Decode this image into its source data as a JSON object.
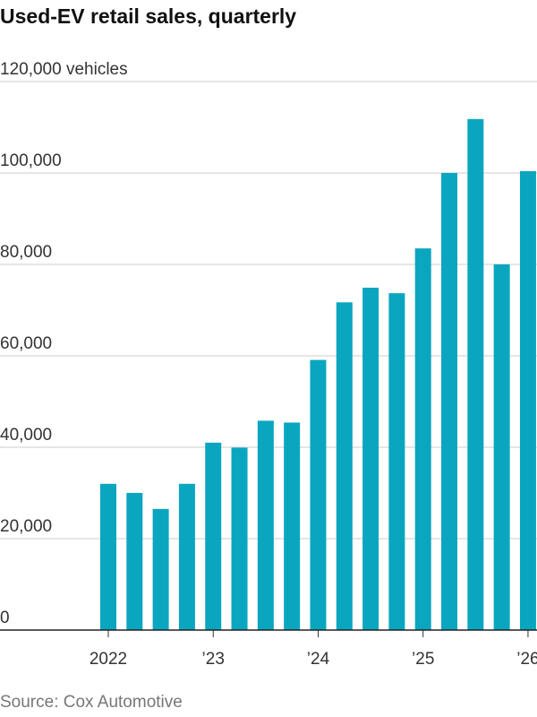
{
  "chart_data": {
    "type": "bar",
    "title": "Used-EV retail sales, quarterly",
    "source": "Source: Cox Automotive",
    "categories": [
      "2022",
      null,
      null,
      null,
      "’23",
      null,
      null,
      null,
      "’24",
      null,
      null,
      null,
      "’25",
      null,
      null,
      null,
      "’26"
    ],
    "values": [
      32000,
      30000,
      26500,
      32000,
      41000,
      39900,
      45800,
      45400,
      59100,
      71700,
      74900,
      73700,
      83500,
      100000,
      111800,
      80000,
      100400
    ],
    "color": "#0aa6c0",
    "ylim": [
      0,
      120000
    ],
    "yticks": [
      0,
      {
        "value": 20000,
        "label": "20,000"
      },
      {
        "value": 40000,
        "label": "40,000"
      },
      {
        "value": 60000,
        "label": "60,000"
      },
      {
        "value": 80000,
        "label": "80,000"
      },
      {
        "value": 100000,
        "label": "100,000"
      },
      {
        "value": 120000,
        "label": "120,000 vehicles"
      }
    ],
    "grid": true
  }
}
